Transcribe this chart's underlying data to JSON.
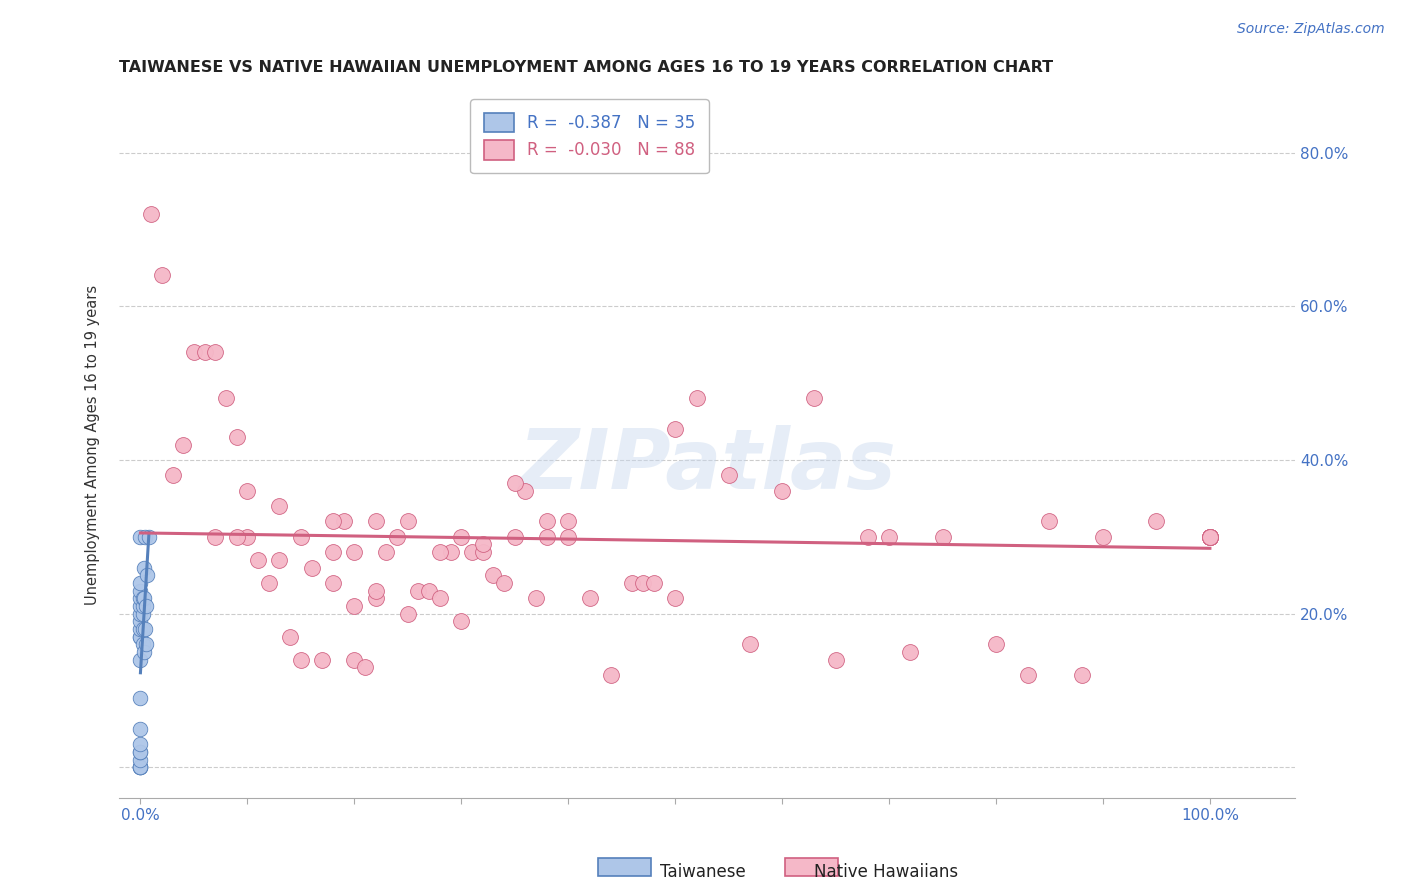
{
  "title": "TAIWANESE VS NATIVE HAWAIIAN UNEMPLOYMENT AMONG AGES 16 TO 19 YEARS CORRELATION CHART",
  "source": "Source: ZipAtlas.com",
  "ylabel": "Unemployment Among Ages 16 to 19 years",
  "y_ticks": [
    0.0,
    0.2,
    0.4,
    0.6,
    0.8
  ],
  "y_tick_labels_right": [
    "20.0%",
    "40.0%",
    "60.0%",
    "80.0%"
  ],
  "y_ticks_right": [
    0.2,
    0.4,
    0.6,
    0.8
  ],
  "xlim": [
    -0.02,
    1.08
  ],
  "ylim": [
    -0.04,
    0.88
  ],
  "background_color": "#ffffff",
  "grid_color": "#cccccc",
  "title_color": "#222222",
  "watermark": "ZIPatlas",
  "legend_r1": "R = -0.387",
  "legend_n1": "N = 35",
  "legend_r2": "R = -0.030",
  "legend_n2": "N = 88",
  "taiwanese_color": "#aec6e8",
  "taiwanese_edge_color": "#5580bb",
  "native_hawaiian_color": "#f5b8c8",
  "native_hawaiian_edge_color": "#d06080",
  "trendline_taiwanese_color": "#5580bb",
  "trendline_native_color": "#d06080",
  "taiwanese_x": [
    0.0,
    0.0,
    0.0,
    0.0,
    0.0,
    0.0,
    0.0,
    0.0,
    0.0,
    0.0,
    0.0,
    0.0,
    0.0,
    0.0,
    0.0,
    0.0,
    0.0,
    0.0,
    0.0,
    0.0,
    0.0,
    0.002,
    0.002,
    0.002,
    0.002,
    0.002,
    0.003,
    0.003,
    0.003,
    0.004,
    0.004,
    0.005,
    0.005,
    0.006,
    0.008
  ],
  "taiwanese_y": [
    0.0,
    0.0,
    0.0,
    0.0,
    0.01,
    0.02,
    0.02,
    0.03,
    0.05,
    0.09,
    0.14,
    0.17,
    0.17,
    0.18,
    0.19,
    0.2,
    0.21,
    0.22,
    0.23,
    0.24,
    0.3,
    0.16,
    0.18,
    0.2,
    0.21,
    0.22,
    0.15,
    0.22,
    0.26,
    0.18,
    0.3,
    0.16,
    0.21,
    0.25,
    0.3
  ],
  "native_hawaiian_x": [
    0.01,
    0.02,
    0.03,
    0.04,
    0.05,
    0.06,
    0.07,
    0.08,
    0.09,
    0.1,
    0.11,
    0.12,
    0.13,
    0.14,
    0.15,
    0.16,
    0.17,
    0.18,
    0.18,
    0.19,
    0.2,
    0.2,
    0.21,
    0.22,
    0.22,
    0.23,
    0.24,
    0.25,
    0.26,
    0.27,
    0.28,
    0.29,
    0.3,
    0.31,
    0.32,
    0.33,
    0.34,
    0.35,
    0.36,
    0.37,
    0.38,
    0.4,
    0.42,
    0.44,
    0.46,
    0.47,
    0.48,
    0.5,
    0.52,
    0.55,
    0.57,
    0.6,
    0.63,
    0.65,
    0.68,
    0.5,
    0.07,
    0.09,
    0.1,
    0.13,
    0.15,
    0.18,
    0.2,
    0.22,
    0.25,
    0.28,
    0.3,
    0.32,
    0.35,
    0.38,
    0.4,
    0.7,
    0.72,
    0.75,
    0.8,
    0.83,
    0.85,
    0.88,
    0.9,
    0.95,
    1.0,
    1.0,
    1.0,
    1.0,
    1.0,
    1.0,
    1.0,
    1.0
  ],
  "native_hawaiian_y": [
    0.72,
    0.64,
    0.38,
    0.42,
    0.54,
    0.54,
    0.54,
    0.48,
    0.43,
    0.3,
    0.27,
    0.24,
    0.27,
    0.17,
    0.14,
    0.26,
    0.14,
    0.24,
    0.28,
    0.32,
    0.14,
    0.21,
    0.13,
    0.22,
    0.23,
    0.28,
    0.3,
    0.2,
    0.23,
    0.23,
    0.22,
    0.28,
    0.3,
    0.28,
    0.28,
    0.25,
    0.24,
    0.3,
    0.36,
    0.22,
    0.3,
    0.32,
    0.22,
    0.12,
    0.24,
    0.24,
    0.24,
    0.22,
    0.48,
    0.38,
    0.16,
    0.36,
    0.48,
    0.14,
    0.3,
    0.44,
    0.3,
    0.3,
    0.36,
    0.34,
    0.3,
    0.32,
    0.28,
    0.32,
    0.32,
    0.28,
    0.19,
    0.29,
    0.37,
    0.32,
    0.3,
    0.3,
    0.15,
    0.3,
    0.16,
    0.12,
    0.32,
    0.12,
    0.3,
    0.32,
    0.3,
    0.3,
    0.3,
    0.3,
    0.3,
    0.3,
    0.3,
    0.3
  ]
}
